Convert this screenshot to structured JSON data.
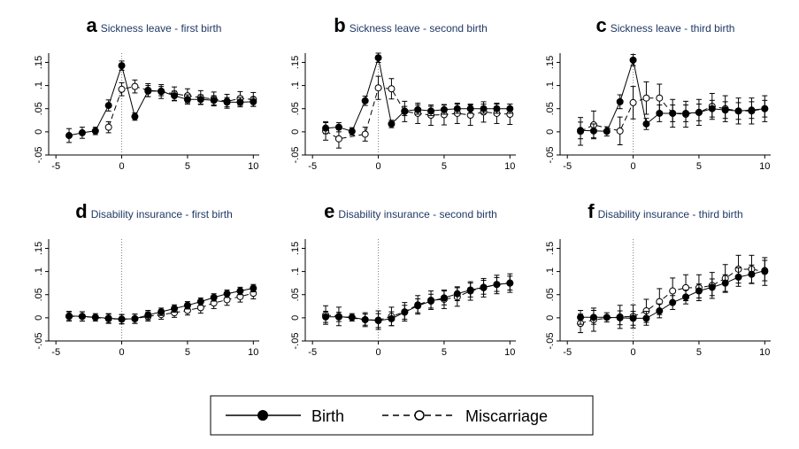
{
  "legend": {
    "birth_label": "Birth",
    "miscarriage_label": "Miscarriage"
  },
  "colors": {
    "birth": "#000000",
    "miscarriage": "#000000",
    "title_text": "#1f3864",
    "zero_line": "#808080"
  },
  "chart_data": [
    {
      "type": "line",
      "letter": "a",
      "title": "Sickness leave - first birth",
      "x": [
        -4,
        -3,
        -2,
        -1,
        0,
        1,
        2,
        3,
        4,
        5,
        6,
        7,
        8,
        9,
        10
      ],
      "xlim": [
        -5,
        10
      ],
      "xticks": [
        "-5",
        "0",
        "5",
        "10"
      ],
      "ylim": [
        -0.05,
        0.17
      ],
      "yticks": [
        "-.05",
        "0",
        ".05",
        ".1",
        ".15"
      ],
      "series": [
        {
          "name": "Birth",
          "marker": "filled",
          "values": [
            -0.008,
            -0.002,
            0.002,
            0.057,
            0.143,
            0.033,
            0.088,
            0.088,
            0.078,
            0.07,
            0.07,
            0.068,
            0.064,
            0.064,
            0.065
          ],
          "ci": [
            0.015,
            0.012,
            0.008,
            0.012,
            0.01,
            0.008,
            0.012,
            0.01,
            0.01,
            0.01,
            0.01,
            0.01,
            0.01,
            0.01,
            0.01
          ]
        },
        {
          "name": "Miscarriage",
          "marker": "hollow",
          "values": [
            null,
            null,
            null,
            0.01,
            0.092,
            0.098,
            0.09,
            0.087,
            0.082,
            0.078,
            0.074,
            0.071,
            0.066,
            0.072,
            0.07
          ],
          "ci": [
            0,
            0,
            0,
            0.012,
            0.014,
            0.014,
            0.014,
            0.015,
            0.015,
            0.015,
            0.015,
            0.015,
            0.015,
            0.015,
            0.015
          ]
        }
      ]
    },
    {
      "type": "line",
      "letter": "b",
      "title": "Sickness leave - second birth",
      "x": [
        -4,
        -3,
        -2,
        -1,
        0,
        1,
        2,
        3,
        4,
        5,
        6,
        7,
        8,
        9,
        10
      ],
      "xlim": [
        -5,
        10
      ],
      "xticks": [
        "-5",
        "0",
        "5",
        "10"
      ],
      "ylim": [
        -0.05,
        0.17
      ],
      "yticks": [
        "-.05",
        "0",
        ".05",
        ".1",
        ".15"
      ],
      "series": [
        {
          "name": "Birth",
          "marker": "filled",
          "values": [
            0.008,
            0.01,
            0.001,
            0.067,
            0.16,
            0.017,
            0.045,
            0.048,
            0.045,
            0.048,
            0.05,
            0.05,
            0.05,
            0.05,
            0.05
          ],
          "ci": [
            0.012,
            0.01,
            0.008,
            0.01,
            0.01,
            0.008,
            0.01,
            0.01,
            0.01,
            0.01,
            0.01,
            0.01,
            0.01,
            0.01,
            0.01
          ]
        },
        {
          "name": "Miscarriage",
          "marker": "hollow",
          "values": [
            0.002,
            -0.015,
            null,
            -0.005,
            0.095,
            0.093,
            0.044,
            0.04,
            0.036,
            0.037,
            0.04,
            0.036,
            0.043,
            0.04,
            0.038
          ],
          "ci": [
            0.02,
            0.02,
            0,
            0.015,
            0.025,
            0.022,
            0.022,
            0.022,
            0.022,
            0.022,
            0.022,
            0.022,
            0.022,
            0.022,
            0.022
          ]
        }
      ]
    },
    {
      "type": "line",
      "letter": "c",
      "title": "Sickness leave - third birth",
      "x": [
        -4,
        -3,
        -2,
        -1,
        0,
        1,
        2,
        3,
        4,
        5,
        6,
        7,
        8,
        9,
        10
      ],
      "xlim": [
        -5,
        10
      ],
      "xticks": [
        "-5",
        "0",
        "5",
        "10"
      ],
      "ylim": [
        -0.05,
        0.17
      ],
      "yticks": [
        "-.05",
        "0",
        ".05",
        ".1",
        ".15"
      ],
      "series": [
        {
          "name": "Birth",
          "marker": "filled",
          "values": [
            0.003,
            0.002,
            0.001,
            0.065,
            0.155,
            0.017,
            0.04,
            0.04,
            0.04,
            0.042,
            0.05,
            0.047,
            0.045,
            0.047,
            0.05
          ],
          "ci": [
            0.018,
            0.015,
            0.01,
            0.015,
            0.012,
            0.012,
            0.018,
            0.018,
            0.018,
            0.018,
            0.018,
            0.018,
            0.018,
            0.018,
            0.018
          ]
        },
        {
          "name": "Miscarriage",
          "marker": "hollow",
          "values": [
            0.001,
            0.015,
            null,
            0.002,
            0.063,
            0.073,
            0.073,
            0.04,
            0.038,
            0.042,
            0.055,
            0.05,
            0.045,
            0.045,
            0.05
          ],
          "ci": [
            0.03,
            0.03,
            0,
            0.03,
            0.035,
            0.035,
            0.03,
            0.03,
            0.028,
            0.028,
            0.028,
            0.028,
            0.028,
            0.028,
            0.028
          ]
        }
      ]
    },
    {
      "type": "line",
      "letter": "d",
      "title": "Disability insurance - first birth",
      "x": [
        -4,
        -3,
        -2,
        -1,
        0,
        1,
        2,
        3,
        4,
        5,
        6,
        7,
        8,
        9,
        10
      ],
      "xlim": [
        -5,
        10
      ],
      "xticks": [
        "-5",
        "0",
        "5",
        "10"
      ],
      "ylim": [
        -0.05,
        0.17
      ],
      "yticks": [
        "-.05",
        "0",
        ".05",
        ".1",
        ".15"
      ],
      "series": [
        {
          "name": "Birth",
          "marker": "filled",
          "values": [
            0.004,
            0.003,
            0.001,
            -0.001,
            -0.003,
            -0.002,
            0.006,
            0.013,
            0.02,
            0.027,
            0.035,
            0.044,
            0.052,
            0.058,
            0.064
          ],
          "ci": [
            0.01,
            0.01,
            0.008,
            0.01,
            0.01,
            0.01,
            0.01,
            0.008,
            0.008,
            0.008,
            0.008,
            0.008,
            0.008,
            0.008,
            0.008
          ]
        },
        {
          "name": "Miscarriage",
          "marker": "hollow",
          "values": [
            0.003,
            0.003,
            null,
            -0.002,
            -0.003,
            -0.002,
            0.003,
            0.007,
            0.011,
            0.016,
            0.022,
            0.032,
            0.039,
            0.046,
            0.053
          ],
          "ci": [
            0.01,
            0.01,
            0,
            0.01,
            0.01,
            0.01,
            0.01,
            0.01,
            0.01,
            0.01,
            0.012,
            0.012,
            0.012,
            0.012,
            0.012
          ]
        }
      ]
    },
    {
      "type": "line",
      "letter": "e",
      "title": "Disability insurance - second birth",
      "x": [
        -4,
        -3,
        -2,
        -1,
        0,
        1,
        2,
        3,
        4,
        5,
        6,
        7,
        8,
        9,
        10
      ],
      "xlim": [
        -5,
        10
      ],
      "xticks": [
        "-5",
        "0",
        "5",
        "10"
      ],
      "ylim": [
        -0.05,
        0.17
      ],
      "yticks": [
        "-.05",
        "0",
        ".05",
        ".1",
        ".15"
      ],
      "series": [
        {
          "name": "Birth",
          "marker": "filled",
          "values": [
            0.002,
            0.002,
            0.001,
            -0.004,
            -0.006,
            -0.002,
            0.012,
            0.026,
            0.036,
            0.043,
            0.052,
            0.06,
            0.066,
            0.072,
            0.075
          ],
          "ci": [
            0.012,
            0.01,
            0.008,
            0.012,
            0.015,
            0.015,
            0.015,
            0.015,
            0.015,
            0.015,
            0.015,
            0.015,
            0.015,
            0.015,
            0.015
          ]
        },
        {
          "name": "Miscarriage",
          "marker": "hollow",
          "values": [
            0.006,
            0.003,
            null,
            -0.004,
            -0.005,
            0.003,
            0.013,
            0.028,
            0.038,
            0.04,
            0.045,
            0.058,
            0.065,
            0.072,
            0.075
          ],
          "ci": [
            0.02,
            0.02,
            0,
            0.015,
            0.02,
            0.02,
            0.02,
            0.02,
            0.02,
            0.02,
            0.02,
            0.02,
            0.02,
            0.02,
            0.02
          ]
        }
      ]
    },
    {
      "type": "line",
      "letter": "f",
      "title": "Disability insurance - third birth",
      "x": [
        -4,
        -3,
        -2,
        -1,
        0,
        1,
        2,
        3,
        4,
        5,
        6,
        7,
        8,
        9,
        10
      ],
      "xlim": [
        -5,
        10
      ],
      "xticks": [
        "-5",
        "0",
        "5",
        "10"
      ],
      "ylim": [
        -0.05,
        0.17
      ],
      "yticks": [
        "-.05",
        "0",
        ".05",
        ".1",
        ".15"
      ],
      "series": [
        {
          "name": "Birth",
          "marker": "filled",
          "values": [
            0.001,
            0.001,
            0.001,
            0.0,
            -0.001,
            -0.001,
            0.015,
            0.033,
            0.045,
            0.058,
            0.066,
            0.075,
            0.088,
            0.094,
            0.102
          ],
          "ci": [
            0.015,
            0.015,
            0.01,
            0.015,
            0.015,
            0.015,
            0.015,
            0.015,
            0.015,
            0.015,
            0.018,
            0.018,
            0.02,
            0.02,
            0.022
          ]
        },
        {
          "name": "Miscarriage",
          "marker": "hollow",
          "values": [
            -0.012,
            -0.004,
            null,
            0.002,
            0.003,
            0.015,
            0.035,
            0.058,
            0.065,
            0.065,
            0.07,
            0.085,
            0.105,
            0.105,
            0.1
          ],
          "ci": [
            0.02,
            0.025,
            0,
            0.025,
            0.025,
            0.025,
            0.028,
            0.028,
            0.028,
            0.028,
            0.028,
            0.03,
            0.03,
            0.03,
            0.03
          ]
        }
      ]
    }
  ]
}
